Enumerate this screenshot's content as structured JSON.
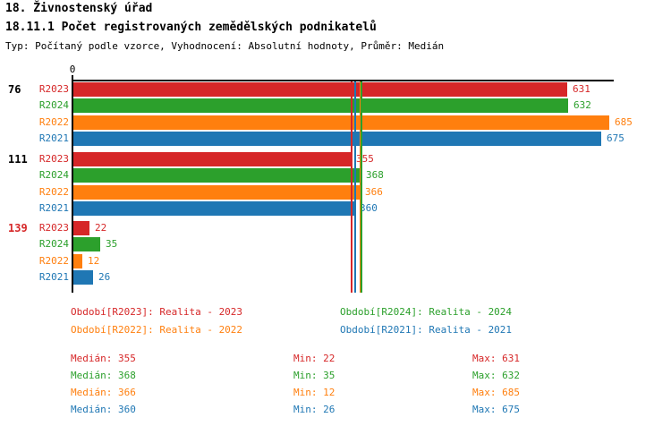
{
  "header": {
    "title": "18. Živnostenský úřad",
    "subtitle": "18.11.1 Počet registrovaných zemědělských podnikatelů",
    "meta": "Typ: Počítaný podle vzorce, Vyhodnocení: Absolutní hodnoty, Průměr: Medián"
  },
  "colors": {
    "R2023": "#d62728",
    "R2024": "#2ca02c",
    "R2022": "#ff7f0e",
    "R2021": "#1f77b4",
    "axis": "#000000",
    "group_label": "#000000",
    "group_label_highlight": "#d62728"
  },
  "chart_data": {
    "type": "bar",
    "orientation": "horizontal",
    "x_origin_label": "0",
    "xlim": [
      0,
      690
    ],
    "grid": false,
    "series_order": [
      "R2023",
      "R2024",
      "R2022",
      "R2021"
    ],
    "groups": [
      {
        "label": "76",
        "highlighted": false,
        "values": {
          "R2023": 631,
          "R2024": 632,
          "R2022": 685,
          "R2021": 675
        }
      },
      {
        "label": "111",
        "highlighted": false,
        "values": {
          "R2023": 355,
          "R2024": 368,
          "R2022": 366,
          "R2021": 360
        }
      },
      {
        "label": "139",
        "highlighted": true,
        "values": {
          "R2023": 22,
          "R2024": 35,
          "R2022": 12,
          "R2021": 26
        }
      }
    ],
    "median_lines": {
      "R2023": 355,
      "R2024": 368,
      "R2022": 366,
      "R2021": 360
    }
  },
  "legend": {
    "rows": [
      [
        {
          "series": "R2023",
          "text": "Období[R2023]: Realita - 2023"
        },
        {
          "series": "R2024",
          "text": "Období[R2024]: Realita - 2024"
        }
      ],
      [
        {
          "series": "R2022",
          "text": "Období[R2022]: Realita - 2022"
        },
        {
          "series": "R2021",
          "text": "Období[R2021]: Realita - 2021"
        }
      ]
    ]
  },
  "stats": {
    "median_label": "Medián",
    "min_label": "Min",
    "max_label": "Max",
    "rows": [
      {
        "series": "R2023",
        "median": 355,
        "min": 22,
        "max": 631
      },
      {
        "series": "R2024",
        "median": 368,
        "min": 35,
        "max": 632
      },
      {
        "series": "R2022",
        "median": 366,
        "min": 12,
        "max": 685
      },
      {
        "series": "R2021",
        "median": 360,
        "min": 26,
        "max": 675
      }
    ]
  }
}
